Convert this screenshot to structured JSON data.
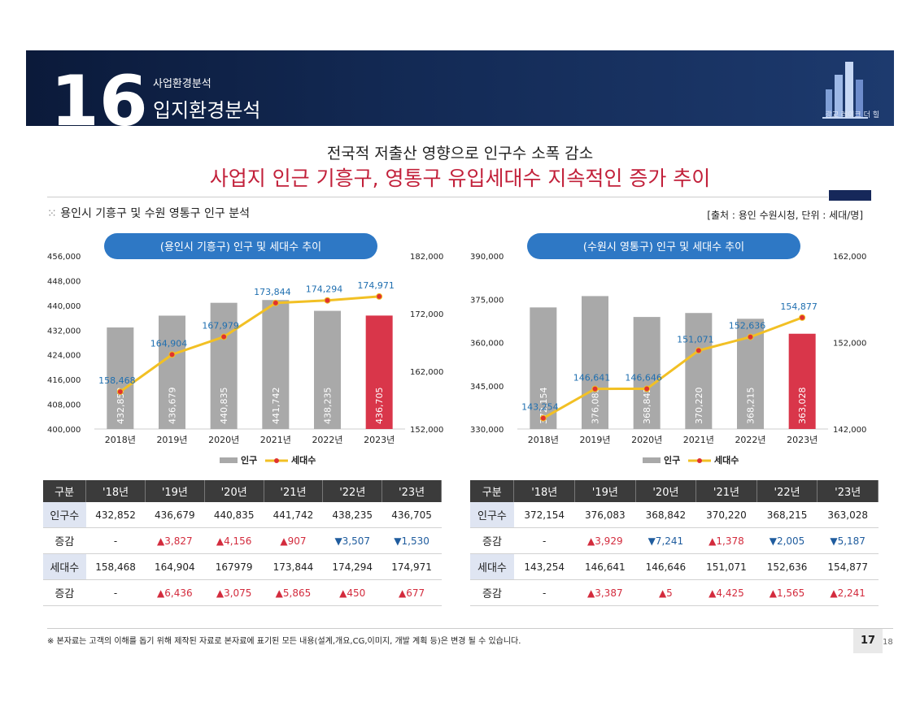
{
  "header": {
    "number": "16",
    "subtitle": "사업환경분석",
    "title": "입지환경분석",
    "logo_text": "광교 레이크 더 힐"
  },
  "headline": {
    "line1": "전국적 저출산 영향으로 인구수 소폭 감소",
    "line2": "사업지 인근 기흥구, 영통구 유입세대수 지속적인 증가 추이"
  },
  "section_title": "용인시 기흥구 및 수원 영통구 인구 분석",
  "source_note": "[출처 : 용인 수원시청, 단위 : 세대/명]",
  "colors": {
    "bar": "#a9a9a9",
    "bar_highlight": "#d9364a",
    "line": "#f2c024",
    "point": "#e0332f",
    "pill": "#2e78c5",
    "value_label": "#1f6fb0"
  },
  "chart_data": [
    {
      "type": "bar",
      "title": "(용인시 기흥구) 인구 및 세대수 추이",
      "categories": [
        "2018년",
        "2019년",
        "2020년",
        "2021년",
        "2022년",
        "2023년"
      ],
      "series": [
        {
          "name": "인구",
          "type": "bar",
          "axis": "left",
          "values": [
            432852,
            436679,
            440835,
            441742,
            438235,
            436705
          ],
          "labels": [
            "432,852",
            "436,679",
            "440,835",
            "441,742",
            "438,235",
            "436,705"
          ]
        },
        {
          "name": "세대수",
          "type": "line",
          "axis": "right",
          "values": [
            158468,
            164904,
            167979,
            173844,
            174294,
            174971
          ],
          "labels": [
            "158,468",
            "164,904",
            "167,979",
            "173,844",
            "174,294",
            "174,971"
          ]
        }
      ],
      "ylim_left": [
        400000,
        456000
      ],
      "ytick_left": [
        "400,000",
        "408,000",
        "416,000",
        "424,000",
        "432,000",
        "440,000",
        "448,000",
        "456,000"
      ],
      "ytick_left_values": [
        400000,
        408000,
        416000,
        424000,
        432000,
        440000,
        448000,
        456000
      ],
      "ylim_right": [
        152000,
        182000
      ],
      "ytick_right": [
        "152,000",
        "162,000",
        "172,000",
        "182,000"
      ],
      "ytick_right_values": [
        152000,
        162000,
        172000,
        182000
      ],
      "legend": [
        "인구",
        "세대수"
      ]
    },
    {
      "type": "bar",
      "title": "(수원시 영통구) 인구 및 세대수 추이",
      "categories": [
        "2018년",
        "2019년",
        "2020년",
        "2021년",
        "2022년",
        "2023년"
      ],
      "series": [
        {
          "name": "인구",
          "type": "bar",
          "axis": "left",
          "values": [
            372154,
            376083,
            368842,
            370220,
            368215,
            363028
          ],
          "labels": [
            "372,154",
            "376,083",
            "368,842",
            "370,220",
            "368,215",
            "363,028"
          ]
        },
        {
          "name": "세대수",
          "type": "line",
          "axis": "right",
          "values": [
            143254,
            146641,
            146646,
            151071,
            152636,
            154877
          ],
          "labels": [
            "143,254",
            "146,641",
            "146,646",
            "151,071",
            "152,636",
            "154,877"
          ]
        }
      ],
      "ylim_left": [
        330000,
        390000
      ],
      "ytick_left": [
        "330,000",
        "345,000",
        "360,000",
        "375,000",
        "390,000"
      ],
      "ytick_left_values": [
        330000,
        345000,
        360000,
        375000,
        390000
      ],
      "ylim_right": [
        142000,
        162000
      ],
      "ytick_right": [
        "142,000",
        "152,000",
        "162,000"
      ],
      "ytick_right_values": [
        142000,
        152000,
        162000
      ],
      "legend": [
        "인구",
        "세대수"
      ]
    }
  ],
  "tables": [
    {
      "headers": [
        "구분",
        "'18년",
        "'19년",
        "'20년",
        "'21년",
        "'22년",
        "'23년"
      ],
      "rows": [
        {
          "label": "인구수",
          "cls": "pop",
          "cells": [
            {
              "t": "432,852"
            },
            {
              "t": "436,679"
            },
            {
              "t": "440,835"
            },
            {
              "t": "441,742"
            },
            {
              "t": "438,235"
            },
            {
              "t": "436,705"
            }
          ]
        },
        {
          "label": "증감",
          "cls": "chg",
          "cells": [
            {
              "t": "-"
            },
            {
              "t": "▲3,827",
              "d": "up"
            },
            {
              "t": "▲4,156",
              "d": "up"
            },
            {
              "t": "▲907",
              "d": "up"
            },
            {
              "t": "▼3,507",
              "d": "down"
            },
            {
              "t": "▼1,530",
              "d": "down"
            }
          ]
        },
        {
          "label": "세대수",
          "cls": "hh",
          "cells": [
            {
              "t": "158,468"
            },
            {
              "t": "164,904"
            },
            {
              "t": "167979"
            },
            {
              "t": "173,844"
            },
            {
              "t": "174,294"
            },
            {
              "t": "174,971"
            }
          ]
        },
        {
          "label": "증감",
          "cls": "chg",
          "cells": [
            {
              "t": "-"
            },
            {
              "t": "▲6,436",
              "d": "up"
            },
            {
              "t": "▲3,075",
              "d": "up"
            },
            {
              "t": "▲5,865",
              "d": "up"
            },
            {
              "t": "▲450",
              "d": "up"
            },
            {
              "t": "▲677",
              "d": "up"
            }
          ]
        }
      ]
    },
    {
      "headers": [
        "구분",
        "'18년",
        "'19년",
        "'20년",
        "'21년",
        "'22년",
        "'23년"
      ],
      "rows": [
        {
          "label": "인구수",
          "cls": "pop",
          "cells": [
            {
              "t": "372,154"
            },
            {
              "t": "376,083"
            },
            {
              "t": "368,842"
            },
            {
              "t": "370,220"
            },
            {
              "t": "368,215"
            },
            {
              "t": "363,028"
            }
          ]
        },
        {
          "label": "증감",
          "cls": "chg",
          "cells": [
            {
              "t": "-"
            },
            {
              "t": "▲3,929",
              "d": "up"
            },
            {
              "t": "▼7,241",
              "d": "down"
            },
            {
              "t": "▲1,378",
              "d": "up"
            },
            {
              "t": "▼2,005",
              "d": "down"
            },
            {
              "t": "▼5,187",
              "d": "down"
            }
          ]
        },
        {
          "label": "세대수",
          "cls": "hh",
          "cells": [
            {
              "t": "143,254"
            },
            {
              "t": "146,641"
            },
            {
              "t": "146,646"
            },
            {
              "t": "151,071"
            },
            {
              "t": "152,636"
            },
            {
              "t": "154,877"
            }
          ]
        },
        {
          "label": "증감",
          "cls": "chg",
          "cells": [
            {
              "t": "-"
            },
            {
              "t": "▲3,387",
              "d": "up"
            },
            {
              "t": "▲5",
              "d": "up"
            },
            {
              "t": "▲4,425",
              "d": "up"
            },
            {
              "t": "▲1,565",
              "d": "up"
            },
            {
              "t": "▲2,241",
              "d": "up"
            }
          ]
        }
      ]
    }
  ],
  "footnote": "※ 본자료는 고객의 이해를 돕기 위해 제작된 자료로 본자료에 표기된 모든 내용(설계,개요,CG,이미지, 개발 계획 등)은 변경 될 수 있습니다.",
  "page": {
    "current": "17",
    "next": "18"
  }
}
